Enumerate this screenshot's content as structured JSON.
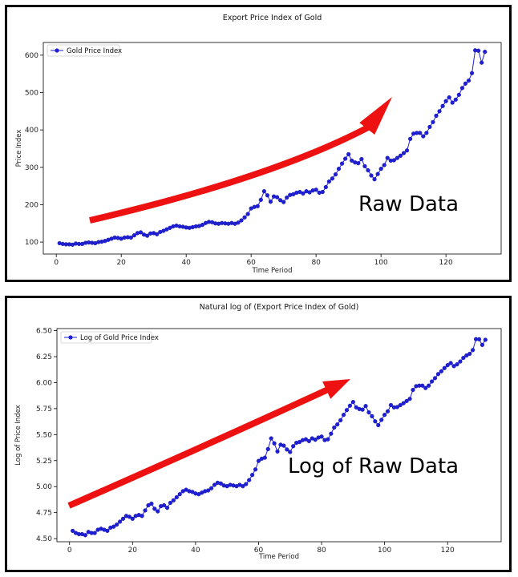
{
  "chart_data": [
    {
      "type": "line",
      "title": "Export Price Index of Gold",
      "xlabel": "Time Period",
      "ylabel": "Price Index",
      "xlim": [
        -4,
        137
      ],
      "ylim": [
        68,
        634
      ],
      "xticks": [
        0,
        20,
        40,
        60,
        80,
        100,
        120
      ],
      "xtick_labels": [
        "0",
        "20",
        "40",
        "60",
        "80",
        "100",
        "120"
      ],
      "yticks": [
        100,
        200,
        300,
        400,
        500,
        600
      ],
      "ytick_labels": [
        "100",
        "200",
        "300",
        "400",
        "500",
        "600"
      ],
      "legend_position": "top-left",
      "grid": false,
      "annotation": "Raw Data",
      "series_color": "#1f1fd6",
      "arrow_color": "#ee1111",
      "series": [
        {
          "name": "Gold Price Index",
          "x": [
            1,
            2,
            3,
            4,
            5,
            6,
            7,
            8,
            9,
            10,
            11,
            12,
            13,
            14,
            15,
            16,
            17,
            18,
            19,
            20,
            21,
            22,
            23,
            24,
            25,
            26,
            27,
            28,
            29,
            30,
            31,
            32,
            33,
            34,
            35,
            36,
            37,
            38,
            39,
            40,
            41,
            42,
            43,
            44,
            45,
            46,
            47,
            48,
            49,
            50,
            51,
            52,
            53,
            54,
            55,
            56,
            57,
            58,
            59,
            60,
            61,
            62,
            63,
            64,
            65,
            66,
            67,
            68,
            69,
            70,
            71,
            72,
            73,
            74,
            75,
            76,
            77,
            78,
            79,
            80,
            81,
            82,
            83,
            84,
            85,
            86,
            87,
            88,
            89,
            90,
            91,
            92,
            93,
            94,
            95,
            96,
            97,
            98,
            99,
            100,
            101,
            102,
            103,
            104,
            105,
            106,
            107,
            108,
            109,
            110,
            111,
            112,
            113,
            114,
            115,
            116,
            117,
            118,
            119,
            120,
            121,
            122,
            123,
            124,
            125,
            126,
            127,
            128,
            129,
            130,
            131,
            132
          ],
          "values": [
            97,
            95,
            94,
            94,
            93,
            96,
            95,
            95,
            98,
            99,
            98,
            97,
            100,
            101,
            103,
            106,
            109,
            112,
            111,
            109,
            112,
            113,
            112,
            118,
            124,
            126,
            120,
            117,
            123,
            124,
            121,
            127,
            130,
            134,
            138,
            142,
            144,
            142,
            141,
            139,
            138,
            140,
            142,
            143,
            146,
            151,
            154,
            153,
            150,
            149,
            151,
            150,
            149,
            151,
            149,
            152,
            158,
            166,
            175,
            190,
            194,
            196,
            213,
            236,
            225,
            208,
            222,
            220,
            212,
            207,
            219,
            226,
            228,
            232,
            234,
            230,
            236,
            233,
            238,
            240,
            232,
            234,
            247,
            262,
            270,
            281,
            296,
            310,
            323,
            335,
            318,
            313,
            311,
            322,
            303,
            292,
            278,
            268,
            282,
            296,
            306,
            325,
            318,
            319,
            325,
            331,
            338,
            345,
            376,
            390,
            392,
            392,
            383,
            392,
            408,
            421,
            438,
            450,
            464,
            477,
            487,
            473,
            481,
            494,
            512,
            524,
            532,
            552,
            613,
            612,
            580,
            609
          ]
        }
      ]
    },
    {
      "type": "line",
      "title": "Natural log of (Export Price Index of Gold)",
      "xlabel": "Time Period",
      "ylabel": "Log of Price Index",
      "xlim": [
        -4,
        137
      ],
      "ylim": [
        4.47,
        6.52
      ],
      "xticks": [
        0,
        20,
        40,
        60,
        80,
        100,
        120
      ],
      "xtick_labels": [
        "0",
        "20",
        "40",
        "60",
        "80",
        "100",
        "120"
      ],
      "yticks": [
        4.5,
        4.75,
        5.0,
        5.25,
        5.5,
        5.75,
        6.0,
        6.25,
        6.5
      ],
      "ytick_labels": [
        "4.50",
        "4.75",
        "5.00",
        "5.25",
        "5.50",
        "5.75",
        "6.00",
        "6.25",
        "6.50"
      ],
      "legend_position": "top-left",
      "grid": false,
      "annotation": "Log of Raw Data",
      "series_color": "#1f1fd6",
      "arrow_color": "#ee1111",
      "series": [
        {
          "name": "Log of Gold Price Index",
          "x": [
            1,
            2,
            3,
            4,
            5,
            6,
            7,
            8,
            9,
            10,
            11,
            12,
            13,
            14,
            15,
            16,
            17,
            18,
            19,
            20,
            21,
            22,
            23,
            24,
            25,
            26,
            27,
            28,
            29,
            30,
            31,
            32,
            33,
            34,
            35,
            36,
            37,
            38,
            39,
            40,
            41,
            42,
            43,
            44,
            45,
            46,
            47,
            48,
            49,
            50,
            51,
            52,
            53,
            54,
            55,
            56,
            57,
            58,
            59,
            60,
            61,
            62,
            63,
            64,
            65,
            66,
            67,
            68,
            69,
            70,
            71,
            72,
            73,
            74,
            75,
            76,
            77,
            78,
            79,
            80,
            81,
            82,
            83,
            84,
            85,
            86,
            87,
            88,
            89,
            90,
            91,
            92,
            93,
            94,
            95,
            96,
            97,
            98,
            99,
            100,
            101,
            102,
            103,
            104,
            105,
            106,
            107,
            108,
            109,
            110,
            111,
            112,
            113,
            114,
            115,
            116,
            117,
            118,
            119,
            120,
            121,
            122,
            123,
            124,
            125,
            126,
            127,
            128,
            129,
            130,
            131,
            132
          ],
          "values": [
            4.575,
            4.554,
            4.543,
            4.543,
            4.533,
            4.564,
            4.554,
            4.554,
            4.585,
            4.595,
            4.585,
            4.575,
            4.605,
            4.615,
            4.635,
            4.663,
            4.691,
            4.718,
            4.71,
            4.691,
            4.718,
            4.727,
            4.718,
            4.771,
            4.82,
            4.836,
            4.787,
            4.762,
            4.812,
            4.82,
            4.796,
            4.844,
            4.868,
            4.898,
            4.927,
            4.956,
            4.97,
            4.956,
            4.949,
            4.934,
            4.927,
            4.942,
            4.956,
            4.963,
            4.984,
            5.017,
            5.037,
            5.03,
            5.011,
            5.004,
            5.017,
            5.011,
            5.004,
            5.017,
            5.004,
            5.024,
            5.063,
            5.112,
            5.165,
            5.247,
            5.268,
            5.278,
            5.361,
            5.464,
            5.416,
            5.338,
            5.403,
            5.394,
            5.357,
            5.333,
            5.389,
            5.421,
            5.429,
            5.447,
            5.455,
            5.438,
            5.464,
            5.451,
            5.472,
            5.481,
            5.447,
            5.455,
            5.509,
            5.568,
            5.598,
            5.638,
            5.69,
            5.736,
            5.778,
            5.814,
            5.762,
            5.746,
            5.74,
            5.775,
            5.714,
            5.677,
            5.628,
            5.591,
            5.642,
            5.69,
            5.724,
            5.784,
            5.762,
            5.765,
            5.784,
            5.802,
            5.823,
            5.844,
            5.93,
            5.966,
            5.971,
            5.971,
            5.948,
            5.971,
            6.011,
            6.043,
            6.082,
            6.109,
            6.14,
            6.168,
            6.188,
            6.159,
            6.176,
            6.203,
            6.238,
            6.261,
            6.277,
            6.313,
            6.418,
            6.417,
            6.363,
            6.412
          ]
        }
      ]
    }
  ]
}
